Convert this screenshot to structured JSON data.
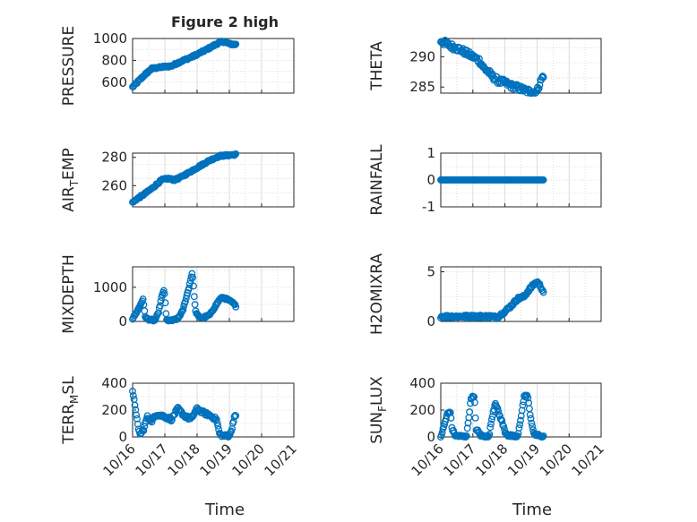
{
  "figure": {
    "title": "Figure 2 high",
    "xlabel": "Time",
    "xticks": [
      "10/16",
      "10/17",
      "10/18",
      "10/19",
      "10/20",
      "10/21"
    ]
  },
  "style": {
    "marker_color": "#0072bd",
    "axis_color": "#262626",
    "grid_color": "#d4d4d4",
    "background": "#ffffff"
  },
  "chart_data": [
    {
      "type": "scatter",
      "ylabel": "PRESSURE",
      "ylim": [
        500,
        1000
      ],
      "yticks": [
        600,
        800,
        1000
      ],
      "shape": "piecewise",
      "knots": [
        [
          0.0,
          555
        ],
        [
          0.15,
          600
        ],
        [
          0.35,
          660
        ],
        [
          0.6,
          725
        ],
        [
          1.0,
          742
        ],
        [
          1.2,
          748
        ],
        [
          1.5,
          790
        ],
        [
          1.9,
          840
        ],
        [
          2.3,
          900
        ],
        [
          2.7,
          965
        ],
        [
          2.85,
          970
        ],
        [
          3.0,
          950
        ],
        [
          3.2,
          945
        ]
      ],
      "noise": 8
    },
    {
      "type": "scatter",
      "ylabel": "THETA",
      "ylim": [
        284,
        293
      ],
      "yticks": [
        285,
        290
      ],
      "shape": "piecewise",
      "knots": [
        [
          0.0,
          292.6
        ],
        [
          0.3,
          291.8
        ],
        [
          0.6,
          291.2
        ],
        [
          0.9,
          290.3
        ],
        [
          1.1,
          289.7
        ],
        [
          1.2,
          289.4
        ],
        [
          1.35,
          288.1
        ],
        [
          1.5,
          287.4
        ],
        [
          1.6,
          286.8
        ],
        [
          1.8,
          286.0
        ],
        [
          2.0,
          285.7
        ],
        [
          2.2,
          285.2
        ],
        [
          2.4,
          284.9
        ],
        [
          2.6,
          284.5
        ],
        [
          2.8,
          284.2
        ],
        [
          3.0,
          284.3
        ],
        [
          3.1,
          285.8
        ],
        [
          3.2,
          287.0
        ]
      ],
      "noise": 0.5
    },
    {
      "type": "scatter",
      "ylabel": "AIR_TEMP",
      "ylim": [
        245,
        283
      ],
      "yticks": [
        260,
        280
      ],
      "shape": "piecewise",
      "knots": [
        [
          0.0,
          248
        ],
        [
          0.1,
          250
        ],
        [
          0.3,
          253
        ],
        [
          0.6,
          258
        ],
        [
          0.9,
          264
        ],
        [
          1.1,
          265
        ],
        [
          1.3,
          264
        ],
        [
          1.5,
          266
        ],
        [
          1.8,
          270
        ],
        [
          2.1,
          274
        ],
        [
          2.4,
          278
        ],
        [
          2.7,
          281
        ],
        [
          3.0,
          281.5
        ],
        [
          3.2,
          282
        ]
      ],
      "noise": 0.6
    },
    {
      "type": "scatter",
      "ylabel": "RAINFALL",
      "ylim": [
        -1,
        1
      ],
      "yticks": [
        -1,
        0,
        1
      ],
      "shape": "piecewise",
      "knots": [
        [
          0.0,
          0
        ],
        [
          3.2,
          0
        ]
      ],
      "noise": 0
    },
    {
      "type": "scatter",
      "ylabel": "MIXDEPTH",
      "ylim": [
        0,
        1600
      ],
      "yticks": [
        0,
        1000
      ],
      "shape": "piecewise",
      "knots": [
        [
          0.0,
          80
        ],
        [
          0.08,
          200
        ],
        [
          0.2,
          400
        ],
        [
          0.32,
          650
        ],
        [
          0.4,
          100
        ],
        [
          0.5,
          60
        ],
        [
          0.65,
          30
        ],
        [
          0.7,
          40
        ],
        [
          0.8,
          250
        ],
        [
          0.9,
          700
        ],
        [
          0.98,
          950
        ],
        [
          1.05,
          40
        ],
        [
          1.2,
          20
        ],
        [
          1.4,
          80
        ],
        [
          1.55,
          300
        ],
        [
          1.75,
          1000
        ],
        [
          1.85,
          1450
        ],
        [
          1.95,
          300
        ],
        [
          2.05,
          130
        ],
        [
          2.2,
          110
        ],
        [
          2.4,
          200
        ],
        [
          2.6,
          500
        ],
        [
          2.7,
          650
        ],
        [
          2.8,
          700
        ],
        [
          2.95,
          640
        ],
        [
          3.1,
          550
        ],
        [
          3.2,
          450
        ]
      ],
      "noise": 25
    },
    {
      "type": "scatter",
      "ylabel": "H2OMIXRA",
      "ylim": [
        0,
        5.5
      ],
      "yticks": [
        0,
        5
      ],
      "shape": "piecewise",
      "knots": [
        [
          0.0,
          0.5
        ],
        [
          1.3,
          0.5
        ],
        [
          1.6,
          0.5
        ],
        [
          1.75,
          0.4
        ],
        [
          2.0,
          1.0
        ],
        [
          2.2,
          1.6
        ],
        [
          2.4,
          2.3
        ],
        [
          2.6,
          2.5
        ],
        [
          2.75,
          3.2
        ],
        [
          2.9,
          3.7
        ],
        [
          3.0,
          4.0
        ],
        [
          3.1,
          3.6
        ],
        [
          3.2,
          3.0
        ]
      ],
      "noise": 0.15
    },
    {
      "type": "scatter",
      "ylabel": "TERR_MSL",
      "ylim": [
        0,
        400
      ],
      "yticks": [
        0,
        200,
        400
      ],
      "shape": "piecewise",
      "knots": [
        [
          0.0,
          330
        ],
        [
          0.1,
          200
        ],
        [
          0.18,
          50
        ],
        [
          0.25,
          20
        ],
        [
          0.35,
          60
        ],
        [
          0.45,
          150
        ],
        [
          0.6,
          120
        ],
        [
          0.75,
          170
        ],
        [
          1.0,
          150
        ],
        [
          1.2,
          130
        ],
        [
          1.4,
          210
        ],
        [
          1.6,
          160
        ],
        [
          1.8,
          130
        ],
        [
          2.0,
          210
        ],
        [
          2.2,
          180
        ],
        [
          2.4,
          160
        ],
        [
          2.6,
          130
        ],
        [
          2.7,
          20
        ],
        [
          2.8,
          10
        ],
        [
          2.95,
          5
        ],
        [
          3.05,
          30
        ],
        [
          3.15,
          150
        ]
      ],
      "noise": 12
    },
    {
      "type": "scatter",
      "ylabel": "SUN_FLUX",
      "ylim": [
        0,
        400
      ],
      "yticks": [
        0,
        200,
        400
      ],
      "shape": "piecewise",
      "knots": [
        [
          0.0,
          0
        ],
        [
          0.1,
          80
        ],
        [
          0.2,
          170
        ],
        [
          0.3,
          190
        ],
        [
          0.35,
          60
        ],
        [
          0.45,
          10
        ],
        [
          0.8,
          0
        ],
        [
          0.85,
          100
        ],
        [
          0.95,
          300
        ],
        [
          1.05,
          290
        ],
        [
          1.1,
          60
        ],
        [
          1.25,
          10
        ],
        [
          1.5,
          0
        ],
        [
          1.6,
          150
        ],
        [
          1.7,
          260
        ],
        [
          1.8,
          180
        ],
        [
          1.9,
          120
        ],
        [
          2.0,
          40
        ],
        [
          2.1,
          10
        ],
        [
          2.4,
          0
        ],
        [
          2.5,
          150
        ],
        [
          2.6,
          300
        ],
        [
          2.7,
          310
        ],
        [
          2.8,
          150
        ],
        [
          2.9,
          20
        ],
        [
          3.2,
          0
        ]
      ],
      "noise": 10
    }
  ]
}
